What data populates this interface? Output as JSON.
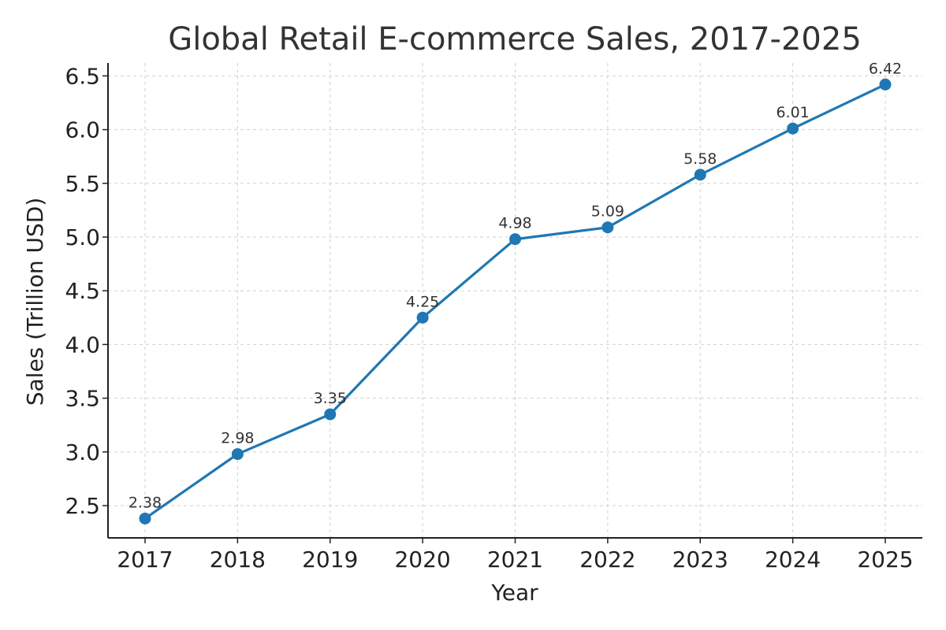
{
  "chart_data": {
    "type": "line",
    "title": "Global Retail E-commerce Sales, 2017-2025",
    "xlabel": "Year",
    "ylabel": "Sales (Trillion USD)",
    "categories": [
      "2017",
      "2018",
      "2019",
      "2020",
      "2021",
      "2022",
      "2023",
      "2024",
      "2025"
    ],
    "values": [
      2.38,
      2.98,
      3.35,
      4.25,
      4.98,
      5.09,
      5.58,
      6.01,
      6.42
    ],
    "data_labels": [
      "2.38",
      "2.98",
      "3.35",
      "4.25",
      "4.98",
      "5.09",
      "5.58",
      "6.01",
      "6.42"
    ],
    "ylim": [
      2.2,
      6.62
    ],
    "yticks": [
      "2.5",
      "3.0",
      "3.5",
      "4.0",
      "4.5",
      "5.0",
      "5.5",
      "6.0",
      "6.5"
    ],
    "grid": true,
    "line_style": "solid with circle markers",
    "color": "#1f77b4"
  }
}
